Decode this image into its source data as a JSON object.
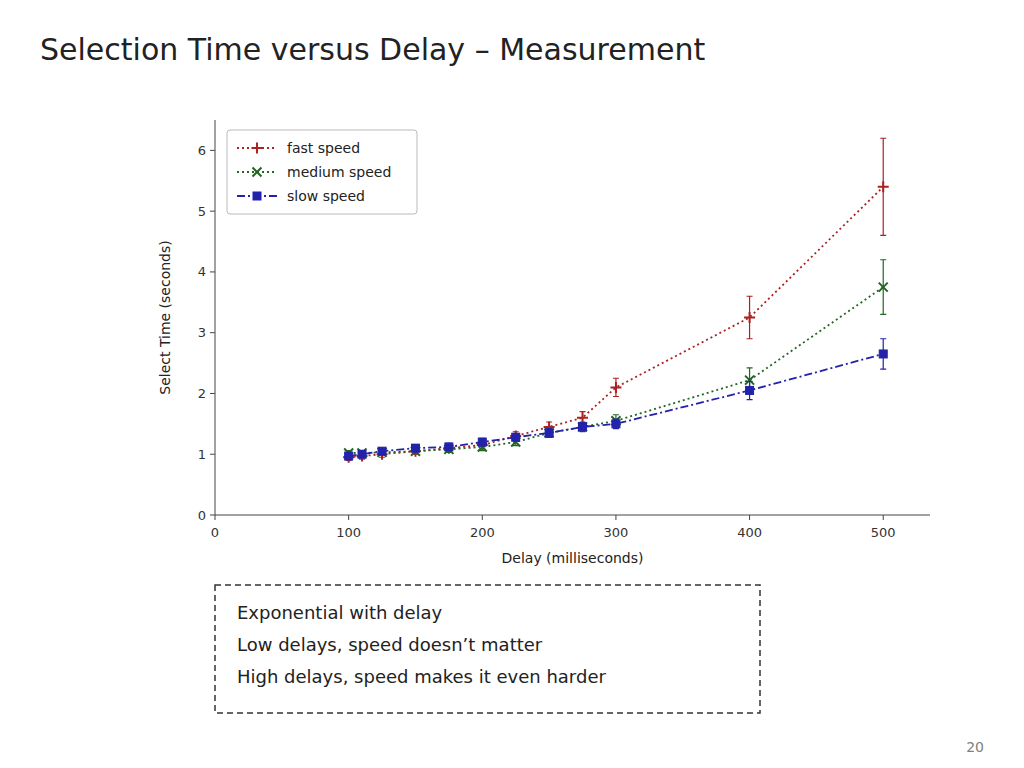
{
  "chart_data": {
    "type": "line",
    "title": "Selection Time versus Delay – Measurement",
    "x_label": "Delay (milliseconds)",
    "y_label": "Select Time (seconds)",
    "x": [
      100,
      110,
      125,
      150,
      175,
      200,
      225,
      250,
      275,
      300,
      400,
      500
    ],
    "series": [
      {
        "name": "fast speed",
        "color": "#aa2222",
        "marker": "plus",
        "line_style": "dotted",
        "values": [
          0.95,
          0.97,
          1.0,
          1.05,
          1.1,
          1.15,
          1.3,
          1.45,
          1.6,
          2.1,
          3.25,
          5.4
        ],
        "errors": [
          0.05,
          0.05,
          0.05,
          0.05,
          0.05,
          0.06,
          0.07,
          0.08,
          0.1,
          0.15,
          0.35,
          0.8
        ]
      },
      {
        "name": "medium speed",
        "color": "#226622",
        "marker": "x",
        "line_style": "dotted",
        "values": [
          1.02,
          1.02,
          1.03,
          1.05,
          1.08,
          1.12,
          1.2,
          1.35,
          1.45,
          1.55,
          2.22,
          3.75
        ],
        "errors": [
          0.04,
          0.04,
          0.04,
          0.04,
          0.05,
          0.06,
          0.06,
          0.07,
          0.08,
          0.1,
          0.2,
          0.45
        ]
      },
      {
        "name": "slow speed",
        "color": "#2222aa",
        "marker": "square",
        "line_style": "dashdot",
        "values": [
          0.97,
          1.0,
          1.05,
          1.1,
          1.12,
          1.2,
          1.28,
          1.35,
          1.45,
          1.5,
          2.05,
          2.65
        ],
        "errors": [
          0.05,
          0.05,
          0.05,
          0.06,
          0.06,
          0.06,
          0.06,
          0.07,
          0.07,
          0.08,
          0.15,
          0.25
        ]
      }
    ],
    "xlim": [
      0,
      535
    ],
    "ylim": [
      0,
      6.5
    ],
    "xticks": [
      0,
      100,
      200,
      300,
      400,
      500
    ],
    "yticks": [
      0,
      1,
      2,
      3,
      4,
      5,
      6
    ],
    "grid": false,
    "legend": "upper left",
    "annotations": [
      "Exponential with delay\nLow delays, speed doesn’t matter\nHigh delays, speed makes it even harder",
      "20"
    ]
  }
}
